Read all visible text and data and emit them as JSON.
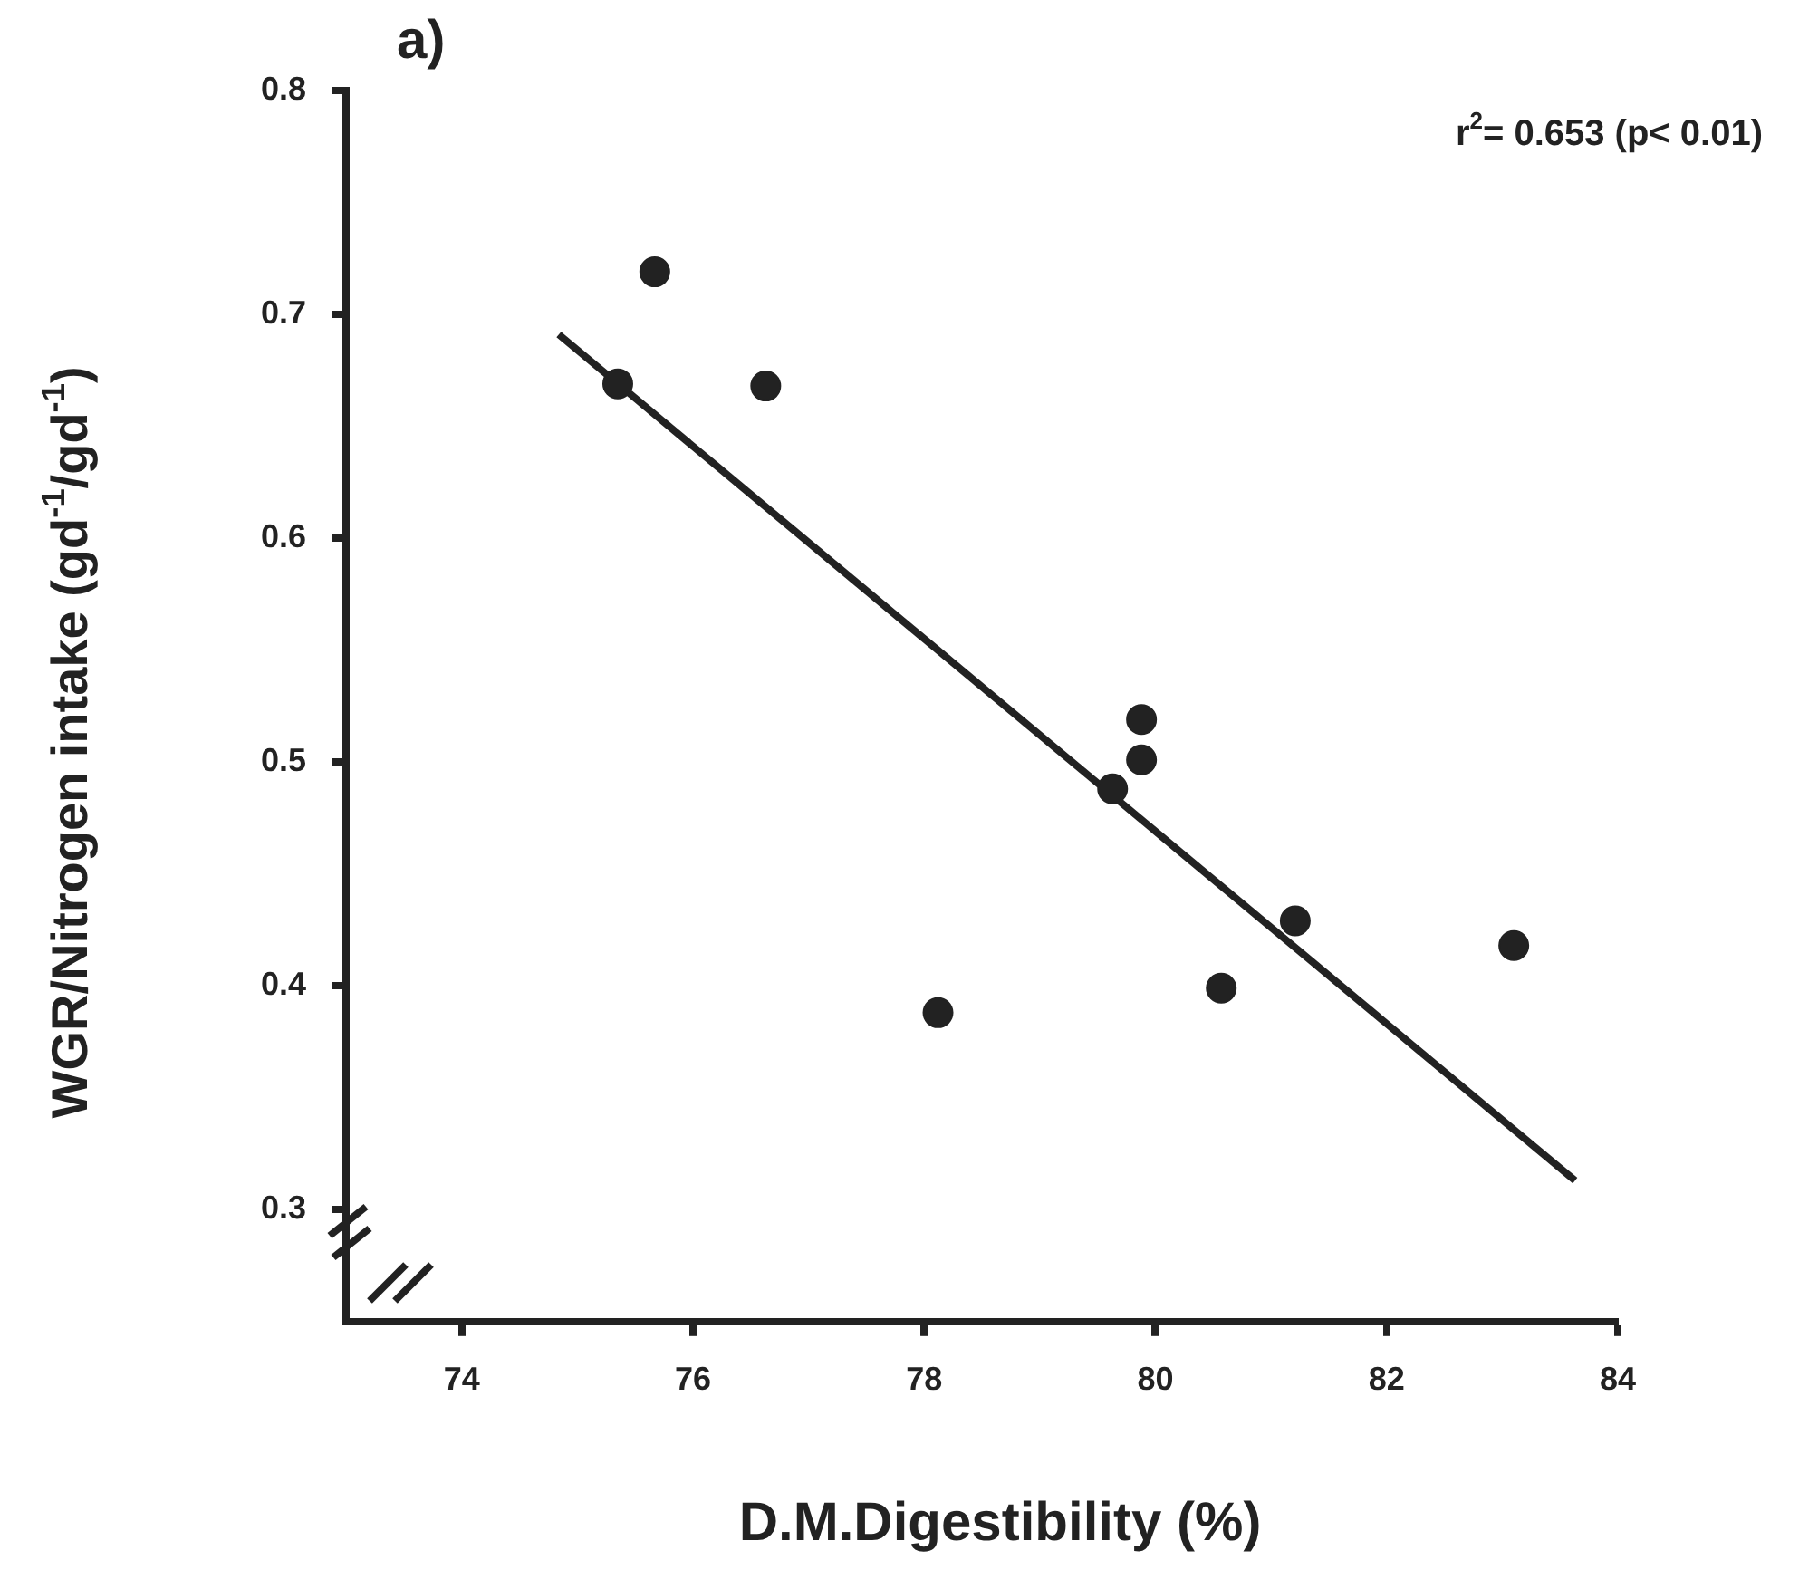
{
  "chart_data": {
    "type": "scatter",
    "title": "a)",
    "xlabel": "D.M.Digestibility (%)",
    "ylabel": "WGR/Nitrogen intake (gd$^{-1}$/gd$^{-1}$)",
    "annotations": [
      "r$^{2}$= 0.653 (p< 0.01)"
    ],
    "xlim": [
      73,
      84
    ],
    "xticks": [
      74,
      76,
      78,
      80,
      82,
      84
    ],
    "ylim": [
      0.25,
      0.8
    ],
    "yticks": [
      0.3,
      0.4,
      0.5,
      0.6,
      0.7,
      0.8
    ],
    "grid": false,
    "legend": false,
    "marker": "circle",
    "series": [
      {
        "type": "scatter",
        "color": "#222222",
        "x": [
          75.67,
          75.35,
          76.63,
          78.12,
          79.88,
          79.88,
          79.63,
          81.21,
          83.1,
          80.57
        ],
        "values": [
          0.719,
          0.669,
          0.668,
          0.388,
          0.519,
          0.501,
          0.488,
          0.429,
          0.418,
          0.399
        ]
      },
      {
        "type": "line",
        "color": "#222222",
        "marker": "none",
        "line_style": "solid",
        "x": [
          74.84,
          83.63
        ],
        "values": [
          0.691,
          0.313
        ]
      }
    ]
  }
}
